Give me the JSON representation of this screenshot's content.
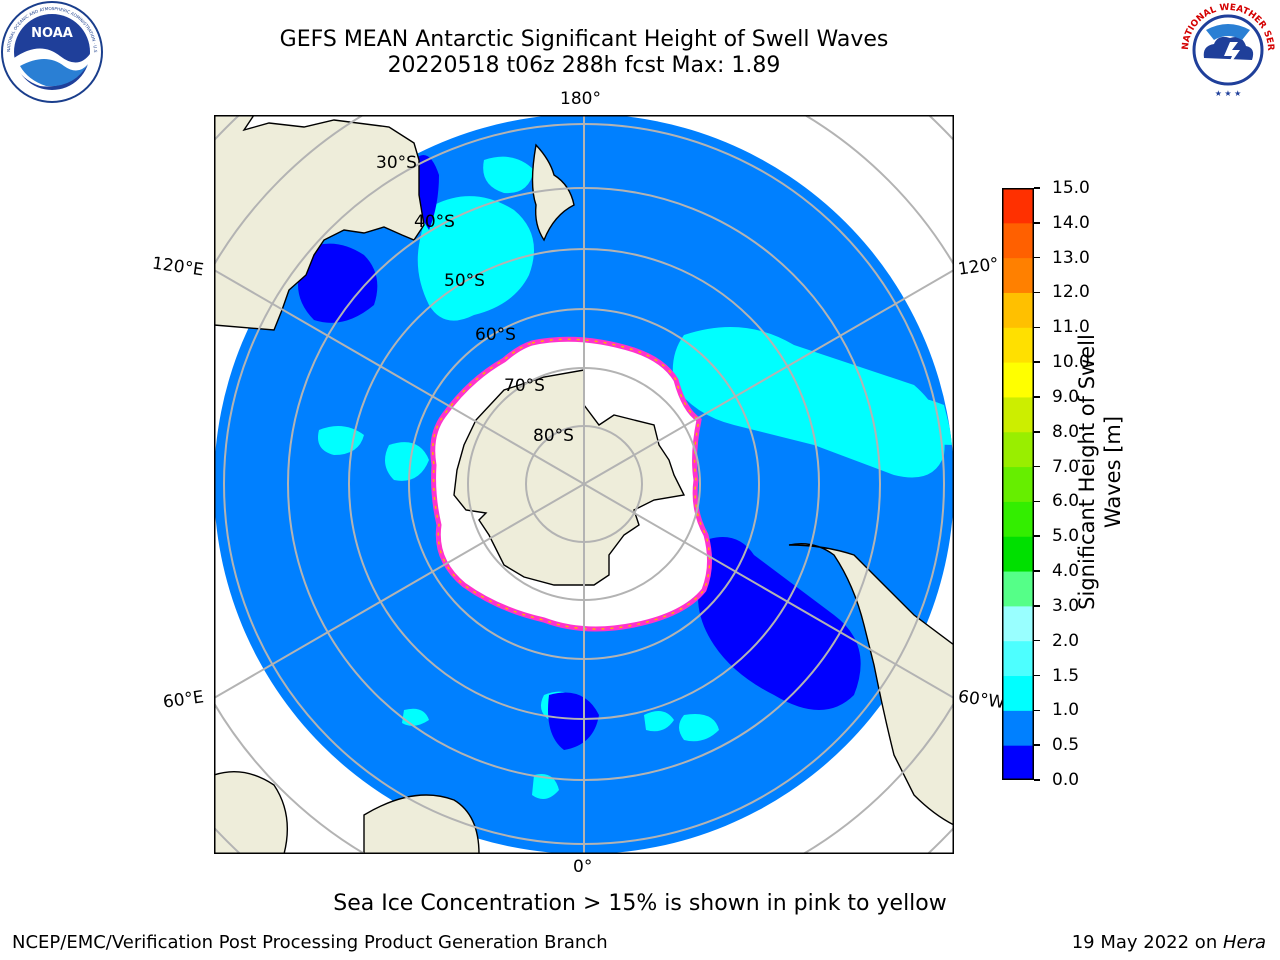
{
  "header": {
    "title_line1": "GEFS MEAN Antarctic Significant Height of Swell Waves",
    "title_line2": "20220518 t06z 288h fcst   Max: 1.89"
  },
  "logos": {
    "left": {
      "name": "noaa-logo",
      "text": "NOAA",
      "ring_text": "NATIONAL OCEANIC AND ATMOSPHERIC ADMINISTRATION · U.S. DEPARTMENT OF COMMERCE"
    },
    "right": {
      "name": "nws-logo",
      "ring_text": "NATIONAL WEATHER SERVICE"
    }
  },
  "map": {
    "projection": "south-polar-stereographic",
    "longitude_labels": {
      "top": "180°",
      "bottom": "0°",
      "left_upper": "120°E",
      "left_lower": "60°E",
      "right_upper": "120°",
      "right_lower": "60°W"
    },
    "latitude_labels": [
      "30°S",
      "40°S",
      "50°S",
      "60°S",
      "70°S",
      "80°S"
    ],
    "colors": {
      "ocean_bg": "#0080ff",
      "land": "#eeedda",
      "ice": "#ffffff",
      "ice_edge": "#ff33cc",
      "ice_edge_inner": "#ffb000",
      "grid": "#b3b3b3"
    }
  },
  "colorbar": {
    "label": "Significant Height of Swell Waves [m]",
    "label_line1": "Significant Height of Swell",
    "label_line2": "Waves [m]",
    "ticks": [
      "0.0",
      "0.5",
      "1.0",
      "1.5",
      "2.0",
      "3.0",
      "4.0",
      "5.0",
      "6.0",
      "7.0",
      "8.0",
      "9.0",
      "10.0",
      "11.0",
      "12.0",
      "13.0",
      "14.0",
      "15.0"
    ],
    "colors": [
      "#0000ff",
      "#0080ff",
      "#00ffff",
      "#4dffff",
      "#99ffff",
      "#55ff88",
      "#00e000",
      "#33ee00",
      "#66ee00",
      "#99ee00",
      "#ccee00",
      "#ffff00",
      "#ffe000",
      "#ffc000",
      "#ff8000",
      "#ff6000",
      "#ff3000",
      "#ff0000"
    ]
  },
  "chart_data": {
    "type": "heatmap",
    "title": "GEFS MEAN Antarctic Significant Height of Swell Waves",
    "subtitle": "20220518 t06z 288h fcst   Max: 1.89",
    "max_value": 1.89,
    "colorbar_label": "Significant Height of Swell Waves [m]",
    "colorbar_range": [
      0.0,
      15.0
    ],
    "colorbar_ticks": [
      0.0,
      0.5,
      1.0,
      1.5,
      2.0,
      3.0,
      4.0,
      5.0,
      6.0,
      7.0,
      8.0,
      9.0,
      10.0,
      11.0,
      12.0,
      13.0,
      14.0,
      15.0
    ],
    "grid": true
  },
  "footer": {
    "note": "Sea Ice Concentration > 15% is shown in pink to yellow",
    "left": "NCEP/EMC/Verification Post Processing Product Generation Branch",
    "right_date": "19 May 2022 on ",
    "right_machine": "Hera"
  }
}
